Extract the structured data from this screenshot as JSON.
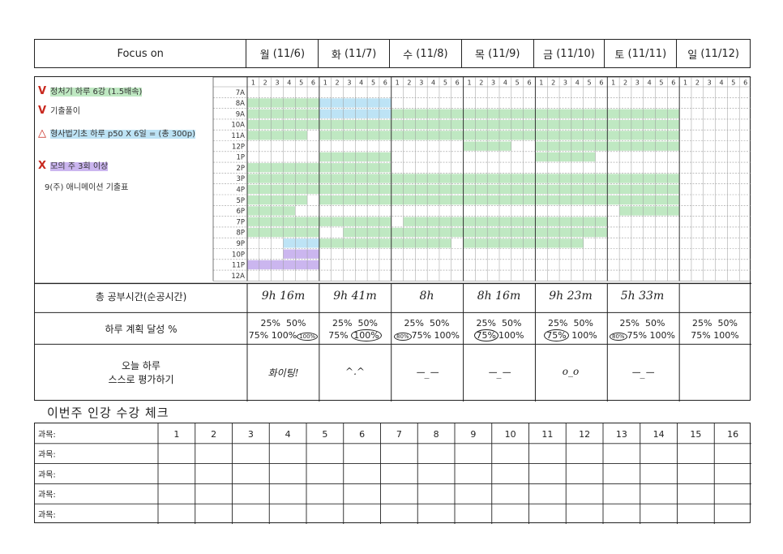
{
  "header": {
    "focus_label": "Focus on",
    "days": [
      {
        "name": "월",
        "date": "(11/6)"
      },
      {
        "name": "화",
        "date": "(11/7)"
      },
      {
        "name": "수",
        "date": "(11/8)"
      },
      {
        "name": "목",
        "date": "(11/9)"
      },
      {
        "name": "금",
        "date": "(11/10)"
      },
      {
        "name": "토",
        "date": "(11/11)"
      },
      {
        "name": "일",
        "date": "(11/12)"
      }
    ]
  },
  "todos": [
    {
      "mark": "V",
      "text": "정처기 하루 6강 (1.5배속)",
      "highlight": "green"
    },
    {
      "mark": "V",
      "text": "기출풀이",
      "highlight": "none"
    },
    {
      "mark": "△",
      "text": "형사법기초 하루 p50 X 6일 = (총 300p)",
      "highlight": "blue"
    },
    {
      "mark": "X",
      "text": "모의 주 3회 이상",
      "highlight": "purple"
    },
    {
      "mark": "",
      "text": "9(주) 애니메이션 기출표",
      "highlight": "none"
    }
  ],
  "grid": {
    "minute_cols": [
      "1",
      "2",
      "3",
      "4",
      "5",
      "6"
    ],
    "hours": [
      "7A",
      "8A",
      "9A",
      "10A",
      "11A",
      "12P",
      "1P",
      "2P",
      "3P",
      "4P",
      "5P",
      "6P",
      "7P",
      "8P",
      "9P",
      "10P",
      "11P",
      "12A"
    ],
    "colors": {
      "study": "#bfe8c2",
      "review": "#bde3f5",
      "mock": "#cbb6ef",
      "grid": "#9a9a9a"
    },
    "fills": [
      {
        "day": 0,
        "type": "study",
        "hr": 1,
        "c0": 0,
        "c1": 6
      },
      {
        "day": 0,
        "type": "study",
        "hr": 2,
        "c0": 0,
        "c1": 6
      },
      {
        "day": 0,
        "type": "study",
        "hr": 3,
        "c0": 0,
        "c1": 6
      },
      {
        "day": 0,
        "type": "study",
        "hr": 4,
        "c0": 0,
        "c1": 5
      },
      {
        "day": 0,
        "type": "study",
        "hr": 7,
        "c0": 0,
        "c1": 6
      },
      {
        "day": 0,
        "type": "study",
        "hr": 8,
        "c0": 0,
        "c1": 6
      },
      {
        "day": 0,
        "type": "study",
        "hr": 9,
        "c0": 0,
        "c1": 6
      },
      {
        "day": 0,
        "type": "study",
        "hr": 10,
        "c0": 0,
        "c1": 5
      },
      {
        "day": 0,
        "type": "study",
        "hr": 11,
        "c0": 0,
        "c1": 4
      },
      {
        "day": 0,
        "type": "study",
        "hr": 12,
        "c0": 0,
        "c1": 6
      },
      {
        "day": 0,
        "type": "study",
        "hr": 13,
        "c0": 0,
        "c1": 6
      },
      {
        "day": 0,
        "type": "review",
        "hr": 14,
        "c0": 3,
        "c1": 6
      },
      {
        "day": 0,
        "type": "mock",
        "hr": 15,
        "c0": 3,
        "c1": 6
      },
      {
        "day": 0,
        "type": "mock",
        "hr": 16,
        "c0": 0,
        "c1": 6
      },
      {
        "day": 1,
        "type": "review",
        "hr": 1,
        "c0": 0,
        "c1": 6
      },
      {
        "day": 1,
        "type": "review",
        "hr": 2,
        "c0": 0,
        "c1": 6
      },
      {
        "day": 1,
        "type": "study",
        "hr": 3,
        "c0": 0,
        "c1": 6
      },
      {
        "day": 1,
        "type": "study",
        "hr": 4,
        "c0": 0,
        "c1": 6
      },
      {
        "day": 1,
        "type": "study",
        "hr": 6,
        "c0": 0,
        "c1": 6
      },
      {
        "day": 1,
        "type": "study",
        "hr": 7,
        "c0": 0,
        "c1": 6
      },
      {
        "day": 1,
        "type": "study",
        "hr": 8,
        "c0": 0,
        "c1": 6
      },
      {
        "day": 1,
        "type": "study",
        "hr": 9,
        "c0": 0,
        "c1": 6
      },
      {
        "day": 1,
        "type": "study",
        "hr": 10,
        "c0": 0,
        "c1": 6
      },
      {
        "day": 1,
        "type": "study",
        "hr": 12,
        "c0": 0,
        "c1": 6
      },
      {
        "day": 1,
        "type": "study",
        "hr": 13,
        "c0": 2,
        "c1": 6
      },
      {
        "day": 1,
        "type": "study",
        "hr": 14,
        "c0": 0,
        "c1": 6
      },
      {
        "day": 2,
        "type": "study",
        "hr": 2,
        "c0": 0,
        "c1": 6
      },
      {
        "day": 2,
        "type": "study",
        "hr": 3,
        "c0": 0,
        "c1": 6
      },
      {
        "day": 2,
        "type": "study",
        "hr": 4,
        "c0": 0,
        "c1": 6
      },
      {
        "day": 2,
        "type": "study",
        "hr": 8,
        "c0": 0,
        "c1": 6
      },
      {
        "day": 2,
        "type": "study",
        "hr": 9,
        "c0": 0,
        "c1": 6
      },
      {
        "day": 2,
        "type": "study",
        "hr": 10,
        "c0": 0,
        "c1": 6
      },
      {
        "day": 2,
        "type": "study",
        "hr": 12,
        "c0": 1,
        "c1": 6
      },
      {
        "day": 2,
        "type": "study",
        "hr": 13,
        "c0": 0,
        "c1": 6
      },
      {
        "day": 2,
        "type": "study",
        "hr": 14,
        "c0": 0,
        "c1": 5
      },
      {
        "day": 3,
        "type": "study",
        "hr": 2,
        "c0": 0,
        "c1": 6
      },
      {
        "day": 3,
        "type": "study",
        "hr": 3,
        "c0": 0,
        "c1": 6
      },
      {
        "day": 3,
        "type": "study",
        "hr": 4,
        "c0": 0,
        "c1": 6
      },
      {
        "day": 3,
        "type": "study",
        "hr": 5,
        "c0": 0,
        "c1": 4
      },
      {
        "day": 3,
        "type": "study",
        "hr": 8,
        "c0": 0,
        "c1": 6
      },
      {
        "day": 3,
        "type": "study",
        "hr": 9,
        "c0": 0,
        "c1": 6
      },
      {
        "day": 3,
        "type": "study",
        "hr": 10,
        "c0": 0,
        "c1": 6
      },
      {
        "day": 3,
        "type": "study",
        "hr": 12,
        "c0": 0,
        "c1": 6
      },
      {
        "day": 3,
        "type": "study",
        "hr": 13,
        "c0": 0,
        "c1": 6
      },
      {
        "day": 3,
        "type": "study",
        "hr": 14,
        "c0": 0,
        "c1": 6
      },
      {
        "day": 4,
        "type": "study",
        "hr": 2,
        "c0": 0,
        "c1": 6
      },
      {
        "day": 4,
        "type": "study",
        "hr": 3,
        "c0": 0,
        "c1": 6
      },
      {
        "day": 4,
        "type": "study",
        "hr": 4,
        "c0": 0,
        "c1": 6
      },
      {
        "day": 4,
        "type": "study",
        "hr": 5,
        "c0": 0,
        "c1": 6
      },
      {
        "day": 4,
        "type": "study",
        "hr": 6,
        "c0": 0,
        "c1": 5
      },
      {
        "day": 4,
        "type": "study",
        "hr": 8,
        "c0": 0,
        "c1": 6
      },
      {
        "day": 4,
        "type": "study",
        "hr": 9,
        "c0": 0,
        "c1": 6
      },
      {
        "day": 4,
        "type": "study",
        "hr": 10,
        "c0": 0,
        "c1": 6
      },
      {
        "day": 4,
        "type": "study",
        "hr": 12,
        "c0": 0,
        "c1": 6
      },
      {
        "day": 4,
        "type": "study",
        "hr": 13,
        "c0": 0,
        "c1": 6
      },
      {
        "day": 4,
        "type": "study",
        "hr": 14,
        "c0": 0,
        "c1": 4
      },
      {
        "day": 5,
        "type": "study",
        "hr": 2,
        "c0": 0,
        "c1": 6
      },
      {
        "day": 5,
        "type": "study",
        "hr": 3,
        "c0": 0,
        "c1": 6
      },
      {
        "day": 5,
        "type": "study",
        "hr": 4,
        "c0": 0,
        "c1": 6
      },
      {
        "day": 5,
        "type": "study",
        "hr": 5,
        "c0": 0,
        "c1": 6
      },
      {
        "day": 5,
        "type": "study",
        "hr": 8,
        "c0": 0,
        "c1": 6
      },
      {
        "day": 5,
        "type": "study",
        "hr": 9,
        "c0": 0,
        "c1": 6
      },
      {
        "day": 5,
        "type": "study",
        "hr": 10,
        "c0": 0,
        "c1": 6
      },
      {
        "day": 5,
        "type": "study",
        "hr": 11,
        "c0": 1,
        "c1": 6
      }
    ]
  },
  "summary": {
    "total_label": "총 공부시간(순공시간)",
    "totals": [
      "9h 16m",
      "9h 41m",
      "8h",
      "8h 16m",
      "9h 23m",
      "5h 33m",
      ""
    ],
    "achieve_label": "하루 계획 달성 %",
    "pct_25": "25%",
    "pct_50": "50%",
    "pct_75": "75%",
    "pct_100": "100%",
    "achieve_circled": [
      "100%",
      "100%",
      "80%",
      "75%",
      "75%",
      "80%",
      ""
    ],
    "eval_label_1": "오늘 하루",
    "eval_label_2": "스스로 평가하기",
    "evals": [
      "화이팅!",
      "^.^",
      "ㅡ_ㅡ",
      "ㅡ_ㅡ",
      "o_o",
      "ㅡ_ㅡ",
      ""
    ]
  },
  "lecture": {
    "title": "이번주 인강 수강 체크",
    "row_label": "과목:",
    "numbers": [
      "1",
      "2",
      "3",
      "4",
      "5",
      "6",
      "7",
      "8",
      "9",
      "10",
      "11",
      "12",
      "13",
      "14",
      "15",
      "16"
    ]
  }
}
